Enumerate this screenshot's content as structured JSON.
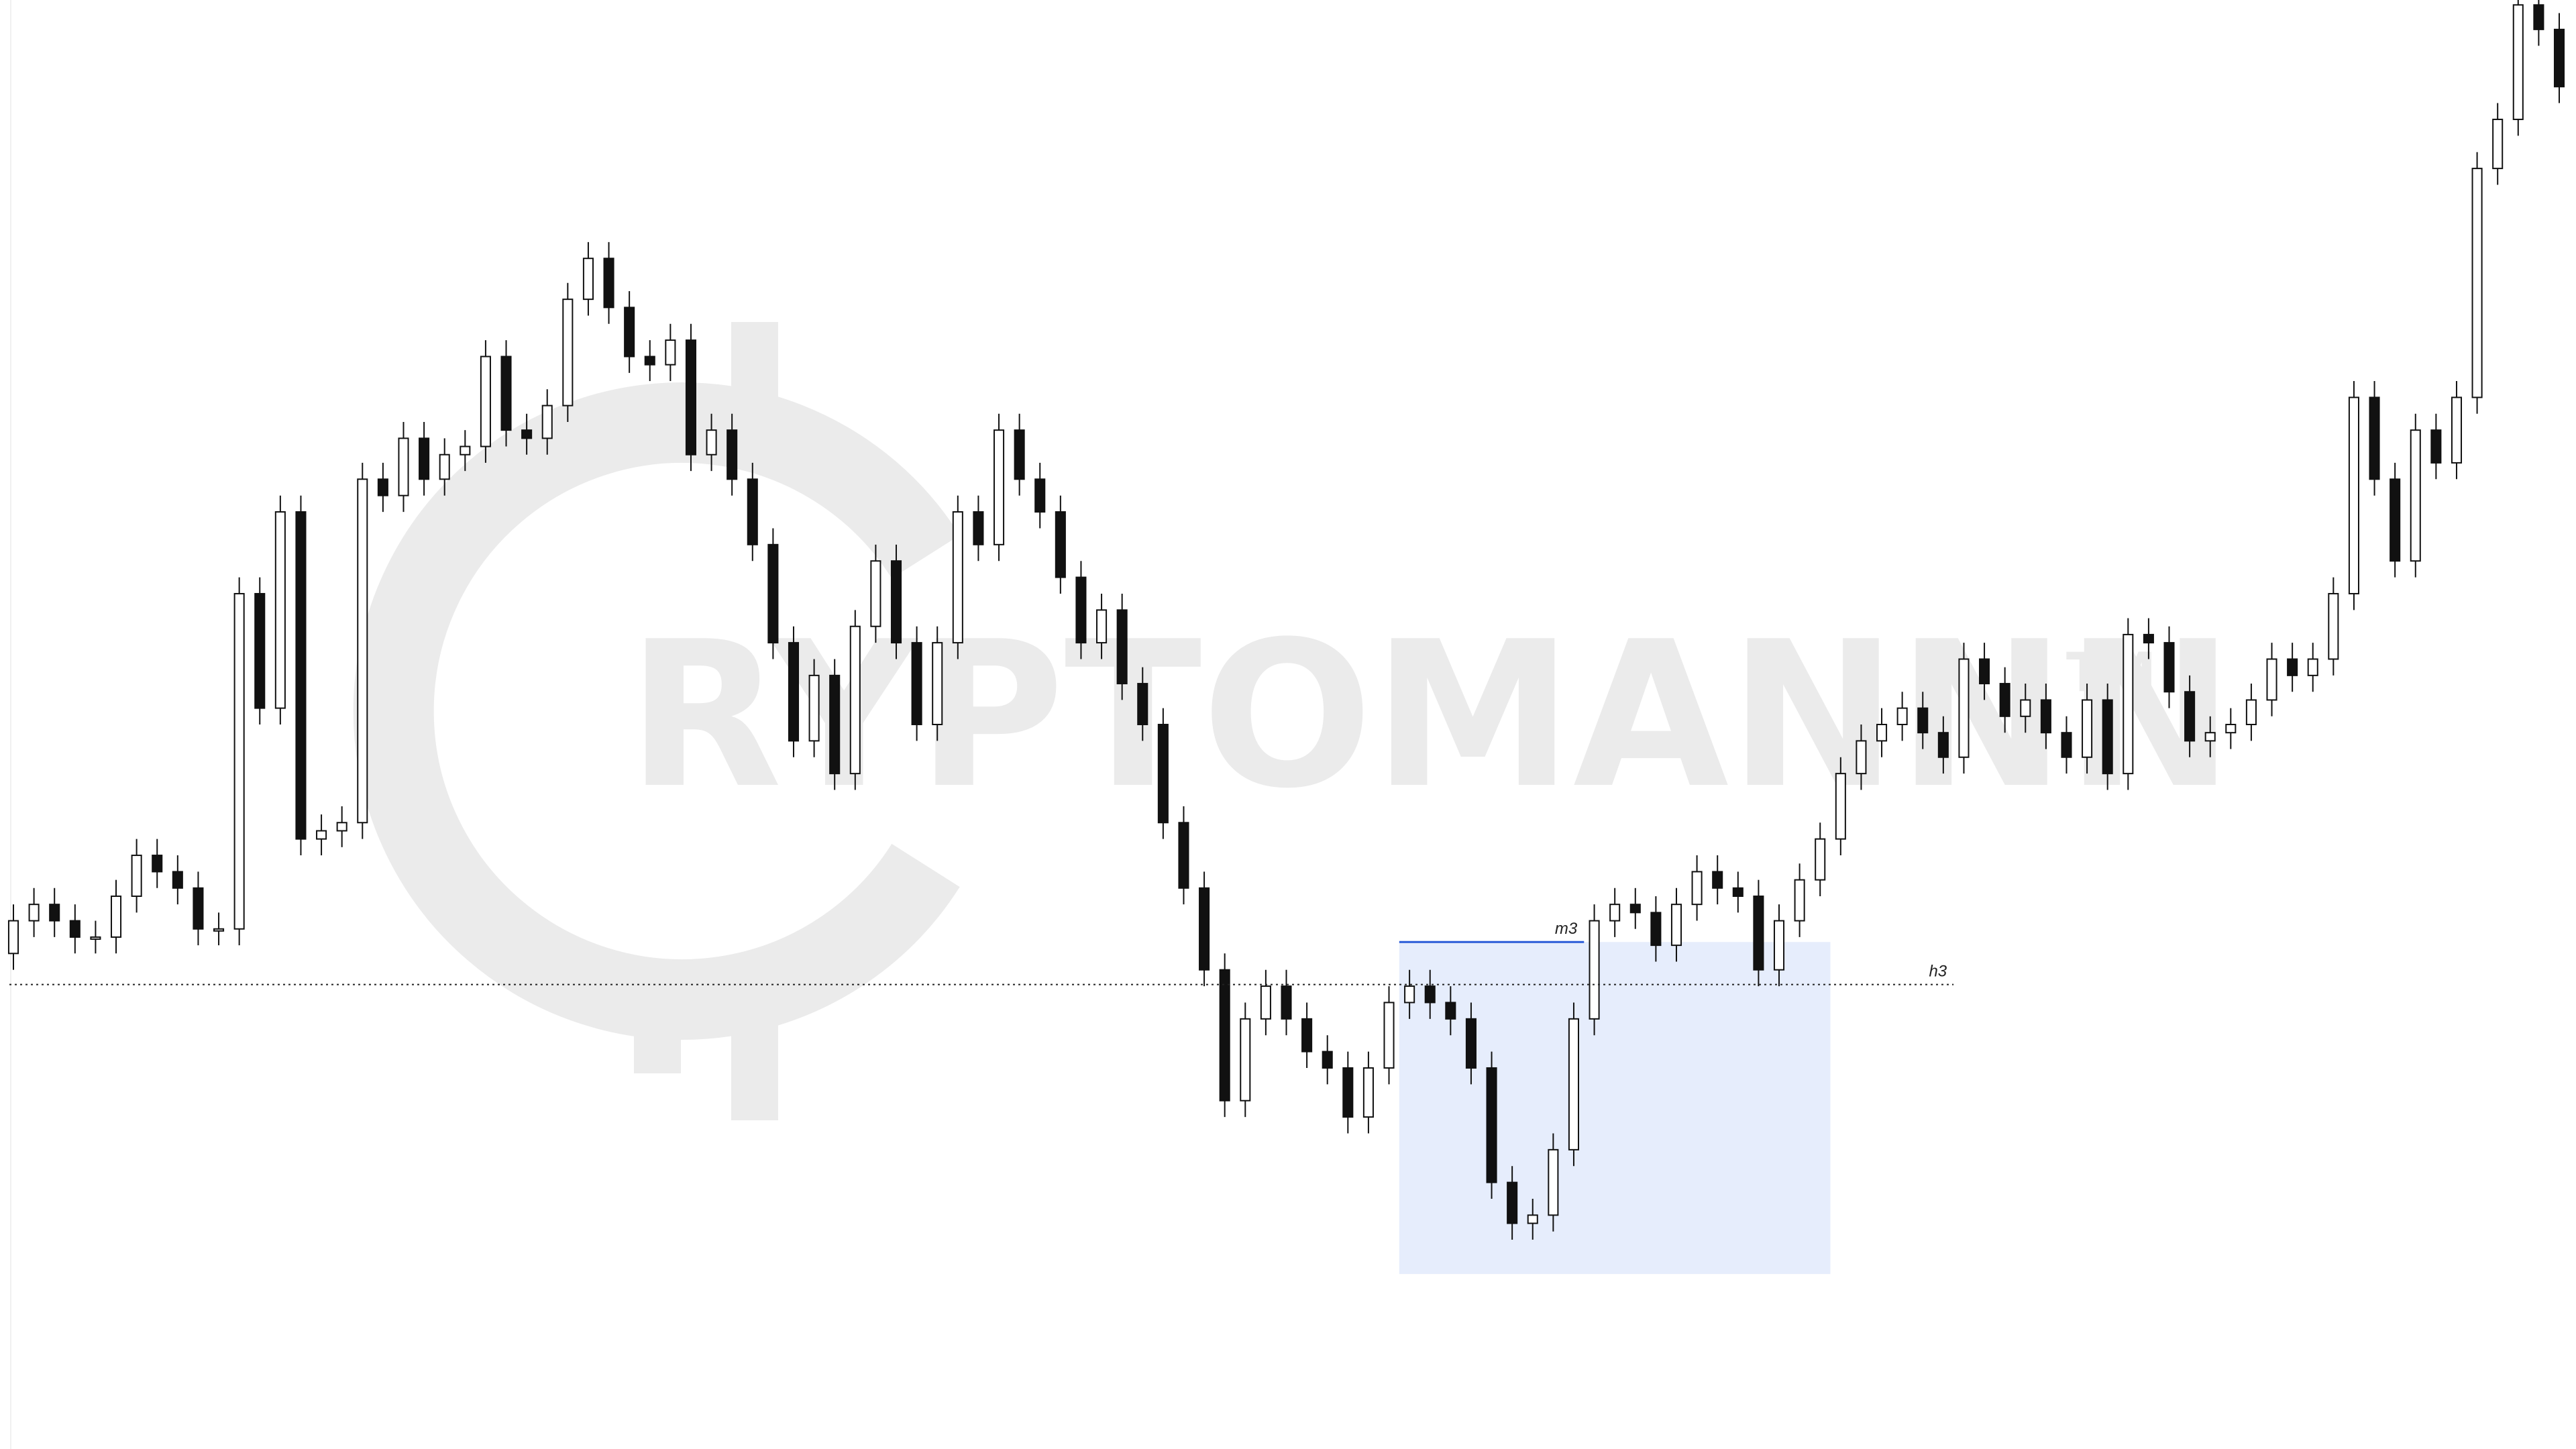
{
  "chart_data": {
    "type": "candlestick",
    "watermark": {
      "text": "RYPTOMANNN",
      "mark": "TM"
    },
    "ylim": [
      -3,
      883
    ],
    "up_color": "#ffffff",
    "down_color": "#111111",
    "zone": {
      "low": 104,
      "high": 307,
      "start": 68,
      "end": 88,
      "color": "#e6edfc"
    },
    "levels": [
      {
        "label": "m3",
        "value": 307,
        "start": 68,
        "end": 76,
        "style": "solid",
        "color": "#2a5bd7"
      },
      {
        "label": "h3",
        "value": 281,
        "start": 0,
        "end": 94,
        "style": "dotted",
        "color": "#222222"
      }
    ],
    "open": [
      300,
      320,
      330,
      320,
      310,
      310,
      335,
      360,
      350,
      340,
      315,
      315,
      520,
      450,
      570,
      370,
      375,
      380,
      590,
      580,
      615,
      590,
      605,
      610,
      665,
      620,
      615,
      635,
      700,
      725,
      695,
      665,
      660,
      675,
      605,
      620,
      590,
      550,
      490,
      430,
      470,
      410,
      500,
      540,
      490,
      440,
      490,
      570,
      550,
      620,
      590,
      570,
      530,
      490,
      510,
      465,
      440,
      380,
      340,
      290,
      210,
      260,
      280,
      260,
      240,
      230,
      200,
      230,
      270,
      280,
      270,
      260,
      230,
      160,
      135,
      140,
      180,
      260,
      320,
      330,
      325,
      305,
      330,
      350,
      340,
      335,
      290,
      320,
      345,
      370,
      410,
      430,
      440,
      450,
      435,
      420,
      480,
      465,
      445,
      455,
      435,
      420,
      455,
      410,
      495,
      490,
      460,
      430,
      435,
      440,
      455,
      480,
      470,
      480,
      520,
      640,
      590,
      540,
      620,
      600,
      640,
      780,
      810,
      880,
      865
    ],
    "high": [
      330,
      340,
      340,
      330,
      320,
      345,
      370,
      370,
      360,
      350,
      325,
      530,
      530,
      580,
      580,
      385,
      390,
      600,
      600,
      625,
      625,
      615,
      620,
      675,
      675,
      630,
      645,
      710,
      735,
      735,
      705,
      675,
      685,
      685,
      630,
      630,
      600,
      560,
      500,
      480,
      480,
      510,
      550,
      550,
      500,
      500,
      580,
      580,
      630,
      630,
      600,
      580,
      540,
      520,
      520,
      475,
      450,
      390,
      350,
      300,
      270,
      290,
      290,
      270,
      250,
      240,
      240,
      280,
      290,
      290,
      280,
      270,
      240,
      170,
      150,
      190,
      270,
      330,
      340,
      340,
      335,
      340,
      360,
      360,
      350,
      345,
      330,
      355,
      380,
      420,
      440,
      450,
      460,
      460,
      445,
      490,
      490,
      475,
      465,
      465,
      445,
      465,
      465,
      505,
      505,
      500,
      470,
      445,
      450,
      465,
      490,
      490,
      490,
      530,
      650,
      650,
      600,
      630,
      630,
      650,
      790,
      820,
      890,
      890,
      875
    ],
    "low": [
      290,
      310,
      310,
      300,
      300,
      300,
      325,
      340,
      330,
      305,
      305,
      305,
      440,
      440,
      360,
      360,
      365,
      370,
      570,
      570,
      580,
      580,
      595,
      600,
      610,
      605,
      605,
      625,
      690,
      685,
      655,
      650,
      650,
      595,
      595,
      580,
      540,
      480,
      420,
      420,
      400,
      400,
      490,
      480,
      430,
      430,
      480,
      540,
      540,
      580,
      560,
      520,
      480,
      480,
      455,
      430,
      370,
      330,
      280,
      200,
      200,
      250,
      250,
      230,
      220,
      190,
      190,
      220,
      260,
      260,
      250,
      220,
      150,
      125,
      125,
      130,
      170,
      250,
      310,
      315,
      295,
      295,
      320,
      330,
      325,
      280,
      280,
      310,
      335,
      360,
      400,
      420,
      430,
      425,
      410,
      410,
      455,
      435,
      435,
      425,
      410,
      410,
      400,
      400,
      480,
      450,
      420,
      420,
      425,
      430,
      445,
      460,
      460,
      470,
      510,
      580,
      530,
      530,
      590,
      590,
      630,
      770,
      800,
      855,
      820
    ],
    "close": [
      320,
      330,
      320,
      310,
      310,
      335,
      360,
      350,
      340,
      315,
      315,
      520,
      450,
      570,
      370,
      375,
      380,
      590,
      580,
      615,
      590,
      605,
      610,
      665,
      620,
      615,
      635,
      700,
      725,
      695,
      665,
      660,
      675,
      605,
      620,
      590,
      550,
      490,
      430,
      470,
      410,
      500,
      540,
      490,
      440,
      490,
      570,
      550,
      620,
      590,
      570,
      530,
      490,
      510,
      465,
      440,
      380,
      340,
      290,
      210,
      260,
      280,
      260,
      240,
      230,
      200,
      230,
      270,
      280,
      270,
      260,
      230,
      160,
      135,
      140,
      180,
      260,
      320,
      330,
      325,
      305,
      330,
      350,
      340,
      335,
      290,
      320,
      345,
      370,
      410,
      430,
      440,
      450,
      435,
      420,
      480,
      465,
      445,
      455,
      435,
      420,
      455,
      410,
      495,
      490,
      460,
      430,
      435,
      440,
      455,
      480,
      470,
      480,
      520,
      640,
      590,
      540,
      620,
      600,
      640,
      780,
      810,
      880,
      865,
      830
    ]
  }
}
